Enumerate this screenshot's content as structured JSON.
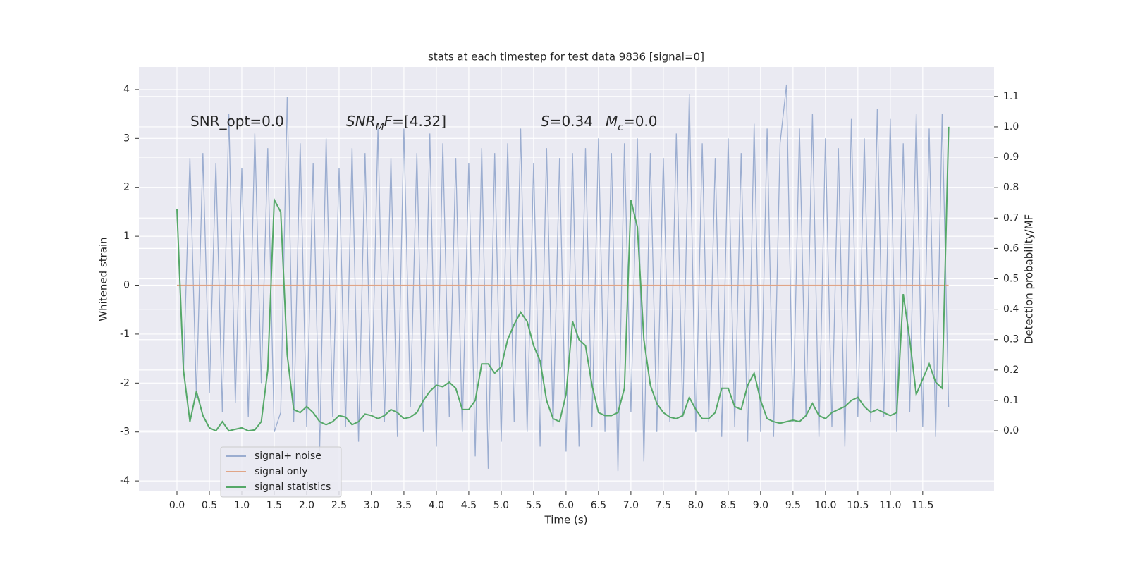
{
  "chart_data": {
    "type": "line",
    "title": "stats at each timestep for test data 9836 [signal=0]",
    "xlabel": "Time (s)",
    "ylabel": "Whitened strain",
    "y2label": "Detection probability/MF",
    "annotations": [
      [
        {
          "text": "SNR_opt=0.0"
        }
      ],
      [
        {
          "text": "SNR",
          "italic": true
        },
        {
          "text": "M",
          "italic": true,
          "sub": true
        },
        {
          "text": "F",
          "italic": true
        },
        {
          "text": "=[4.32]"
        }
      ],
      [
        {
          "text": "S",
          "italic": true
        },
        {
          "text": "=0.34"
        }
      ],
      [
        {
          "text": "M",
          "italic": true
        },
        {
          "text": "c",
          "italic": true,
          "sub": true
        },
        {
          "text": "=0.0"
        }
      ]
    ],
    "x": [
      0.0,
      0.1,
      0.2,
      0.3,
      0.4,
      0.5,
      0.6,
      0.7,
      0.8,
      0.9,
      1.0,
      1.1,
      1.2,
      1.3,
      1.4,
      1.5,
      1.6,
      1.7,
      1.8,
      1.9,
      2.0,
      2.1,
      2.2,
      2.3,
      2.4,
      2.5,
      2.6,
      2.7,
      2.8,
      2.9,
      3.0,
      3.1,
      3.2,
      3.3,
      3.4,
      3.5,
      3.6,
      3.7,
      3.8,
      3.9,
      4.0,
      4.1,
      4.2,
      4.3,
      4.4,
      4.5,
      4.6,
      4.7,
      4.8,
      4.9,
      5.0,
      5.1,
      5.2,
      5.3,
      5.4,
      5.5,
      5.6,
      5.7,
      5.8,
      5.9,
      6.0,
      6.1,
      6.2,
      6.3,
      6.4,
      6.5,
      6.6,
      6.7,
      6.8,
      6.9,
      7.0,
      7.1,
      7.2,
      7.3,
      7.4,
      7.5,
      7.6,
      7.7,
      7.8,
      7.9,
      8.0,
      8.1,
      8.2,
      8.3,
      8.4,
      8.5,
      8.6,
      8.7,
      8.8,
      8.9,
      9.0,
      9.1,
      9.2,
      9.3,
      9.4,
      9.5,
      9.6,
      9.7,
      9.8,
      9.9,
      10.0,
      10.1,
      10.2,
      10.3,
      10.4,
      10.5,
      10.6,
      10.7,
      10.8,
      10.9,
      11.0,
      11.1,
      11.2,
      11.3,
      11.4,
      11.5,
      11.6,
      11.7,
      11.8,
      11.9
    ],
    "series": [
      {
        "name": "signal+ noise",
        "color": "#9badd0",
        "values": [
          1.5,
          -1.8,
          2.6,
          -2.3,
          2.7,
          -2.2,
          2.5,
          -2.6,
          3.5,
          -2.4,
          2.4,
          -2.7,
          3.1,
          -2.0,
          2.8,
          -3.0,
          -2.6,
          3.85,
          -2.8,
          2.9,
          -2.9,
          2.5,
          -3.4,
          3.0,
          -2.7,
          2.4,
          -2.9,
          2.8,
          -3.2,
          2.7,
          -2.6,
          3.2,
          -2.8,
          2.6,
          -3.1,
          3.2,
          -2.5,
          2.7,
          -3.0,
          3.1,
          -3.3,
          2.9,
          -2.7,
          2.6,
          -3.0,
          2.5,
          -3.5,
          2.8,
          -3.75,
          2.7,
          -3.2,
          2.9,
          -2.8,
          3.2,
          -3.0,
          2.5,
          -3.3,
          2.8,
          -2.9,
          2.6,
          -3.4,
          2.7,
          -3.3,
          2.8,
          -2.9,
          3.0,
          -3.0,
          2.7,
          -3.8,
          2.9,
          -2.6,
          3.0,
          -3.6,
          2.7,
          -3.0,
          2.6,
          -2.8,
          3.1,
          -2.7,
          3.9,
          -3.0,
          2.9,
          -2.8,
          2.6,
          -3.1,
          3.0,
          -2.9,
          2.7,
          -3.2,
          3.3,
          -3.0,
          3.2,
          -3.1,
          2.9,
          4.1,
          -2.8,
          3.2,
          -2.7,
          3.5,
          -3.1,
          3.0,
          -2.9,
          2.8,
          -3.3,
          3.4,
          -2.7,
          3.0,
          -2.8,
          3.6,
          -2.7,
          3.4,
          -3.0,
          2.9,
          -2.6,
          3.5,
          -2.9,
          3.2,
          -3.1,
          3.5,
          -2.5
        ]
      },
      {
        "name": "signal only",
        "color": "#e0a587",
        "x": [
          0.0,
          11.9
        ],
        "values": [
          0,
          0
        ]
      },
      {
        "name": "signal statistics",
        "color": "#55a868",
        "axis": "y2",
        "values": [
          0.73,
          0.2,
          0.03,
          0.13,
          0.05,
          0.01,
          0.0,
          0.03,
          0.0,
          0.005,
          0.01,
          0.0,
          0.003,
          0.03,
          0.2,
          0.76,
          0.72,
          0.25,
          0.07,
          0.06,
          0.08,
          0.06,
          0.03,
          0.02,
          0.03,
          0.05,
          0.045,
          0.02,
          0.03,
          0.055,
          0.05,
          0.04,
          0.05,
          0.07,
          0.06,
          0.04,
          0.045,
          0.06,
          0.1,
          0.13,
          0.15,
          0.145,
          0.16,
          0.14,
          0.07,
          0.07,
          0.1,
          0.22,
          0.22,
          0.19,
          0.21,
          0.3,
          0.35,
          0.39,
          0.36,
          0.28,
          0.23,
          0.1,
          0.04,
          0.03,
          0.12,
          0.36,
          0.3,
          0.28,
          0.15,
          0.06,
          0.05,
          0.05,
          0.06,
          0.14,
          0.76,
          0.67,
          0.3,
          0.15,
          0.09,
          0.06,
          0.045,
          0.04,
          0.05,
          0.11,
          0.07,
          0.04,
          0.04,
          0.06,
          0.14,
          0.14,
          0.08,
          0.07,
          0.15,
          0.19,
          0.1,
          0.04,
          0.03,
          0.025,
          0.03,
          0.035,
          0.03,
          0.05,
          0.09,
          0.05,
          0.04,
          0.06,
          0.07,
          0.08,
          0.1,
          0.11,
          0.08,
          0.06,
          0.07,
          0.06,
          0.05,
          0.06,
          0.45,
          0.3,
          0.12,
          0.17,
          0.22,
          0.16,
          0.14,
          1.0
        ]
      }
    ],
    "xlim": [
      -0.587,
      12.6
    ],
    "xticks": [
      {
        "value": 0,
        "label": "0.0"
      },
      0.5,
      {
        "value": 1,
        "label": "1.0"
      },
      1.5,
      {
        "value": 2,
        "label": "2.0"
      },
      2.5,
      {
        "value": 3,
        "label": "3.0"
      },
      3.5,
      {
        "value": 4,
        "label": "4.0"
      },
      4.5,
      {
        "value": 5,
        "label": "5.0"
      },
      5.5,
      {
        "value": 6,
        "label": "6.0"
      },
      6.5,
      {
        "value": 7,
        "label": "7.0"
      },
      7.5,
      {
        "value": 8,
        "label": "8.0"
      },
      8.5,
      {
        "value": 9,
        "label": "9.0"
      },
      9.5,
      {
        "value": 10,
        "label": "10.0"
      },
      10.5,
      {
        "value": 11,
        "label": "11.0"
      },
      11.5
    ],
    "ylim": [
      -4.2,
      4.46
    ],
    "yticks": [
      -4,
      -3,
      -2,
      -1,
      0,
      1,
      2,
      3,
      4
    ],
    "y2lim": [
      -0.197,
      1.197
    ],
    "y2ticks": [
      {
        "value": 0,
        "label": "0.0"
      },
      0.1,
      0.2,
      0.3,
      0.4,
      0.5,
      0.6,
      0.7,
      0.8,
      0.9,
      {
        "value": 1,
        "label": "1.0"
      },
      1.1
    ],
    "grid": true,
    "legend": "lower left"
  }
}
